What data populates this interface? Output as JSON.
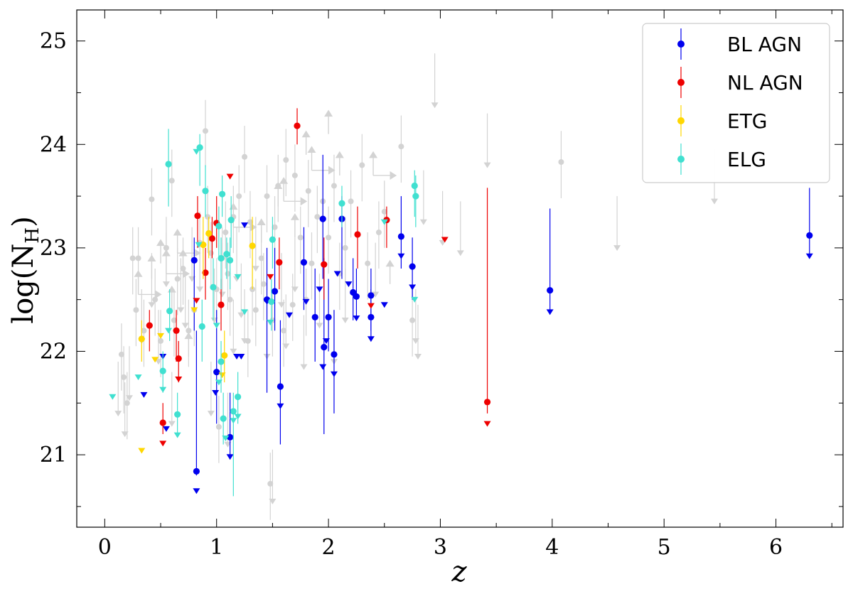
{
  "chart_data": {
    "type": "scatter",
    "xlabel": "z",
    "ylabel": "log(N",
    "ylabel_sub": "H",
    "ylabel_close": ")",
    "xlim": [
      -0.25,
      6.6
    ],
    "ylim": [
      20.3,
      25.3
    ],
    "x_ticks": [
      0,
      1,
      2,
      3,
      4,
      5,
      6
    ],
    "y_ticks": [
      21,
      22,
      23,
      24,
      25
    ],
    "x_tick_labels": [
      "0",
      "1",
      "2",
      "3",
      "4",
      "5",
      "6"
    ],
    "y_tick_labels": [
      "21",
      "22",
      "23",
      "24",
      "25"
    ],
    "grid": false,
    "legend_position": "top-right",
    "background": {
      "name": "",
      "color": "#d3d3d3",
      "points": [
        [
          0.15,
          21.97
        ],
        [
          0.17,
          21.75
        ],
        [
          0.2,
          21.5
        ],
        [
          0.25,
          22.9
        ],
        [
          0.28,
          22.4
        ],
        [
          0.3,
          22.9
        ],
        [
          0.42,
          23.47
        ],
        [
          0.45,
          22.5
        ],
        [
          0.5,
          22.1
        ],
        [
          0.55,
          23.0
        ],
        [
          0.6,
          23.65
        ],
        [
          0.62,
          22.3
        ],
        [
          0.7,
          22.8
        ],
        [
          0.75,
          22.2
        ],
        [
          0.8,
          22.4
        ],
        [
          0.85,
          23.05
        ],
        [
          0.9,
          24.13
        ],
        [
          0.92,
          23.3
        ],
        [
          0.95,
          22.95
        ],
        [
          1.0,
          22.6
        ],
        [
          1.02,
          21.27
        ],
        [
          1.05,
          22.9
        ],
        [
          1.08,
          23.15
        ],
        [
          1.1,
          22.75
        ],
        [
          1.15,
          23.3
        ],
        [
          1.2,
          23.5
        ],
        [
          1.25,
          23.88
        ],
        [
          1.3,
          23.25
        ],
        [
          1.32,
          22.6
        ],
        [
          1.35,
          22.4
        ],
        [
          1.4,
          22.9
        ],
        [
          1.45,
          23.5
        ],
        [
          1.48,
          20.72
        ],
        [
          1.5,
          22.3
        ],
        [
          1.52,
          23.2
        ],
        [
          1.55,
          23.6
        ],
        [
          1.6,
          22.2
        ],
        [
          1.62,
          23.85
        ],
        [
          1.7,
          23.7
        ],
        [
          1.75,
          23.1
        ],
        [
          1.8,
          22.5
        ],
        [
          1.82,
          23.55
        ],
        [
          1.85,
          22.85
        ],
        [
          1.9,
          23.3
        ],
        [
          1.95,
          23.45
        ],
        [
          2.0,
          23.1
        ],
        [
          2.05,
          23.6
        ],
        [
          2.15,
          23.0
        ],
        [
          2.2,
          23.45
        ],
        [
          2.3,
          23.8
        ],
        [
          2.35,
          22.85
        ],
        [
          2.45,
          23.15
        ],
        [
          2.5,
          23.35
        ],
        [
          2.65,
          23.98
        ],
        [
          2.75,
          22.3
        ],
        [
          4.08,
          23.83
        ],
        [
          0.35,
          22.2
        ],
        [
          0.65,
          22.7
        ],
        [
          1.12,
          22.5
        ],
        [
          1.28,
          22.1
        ],
        [
          1.42,
          22.65
        ],
        [
          1.68,
          22.45
        ],
        [
          2.1,
          22.75
        ]
      ]
    },
    "background_upper_limits": [
      [
        0.12,
        21.4
      ],
      [
        0.18,
        21.2
      ],
      [
        0.22,
        21.55
      ],
      [
        0.33,
        22.1
      ],
      [
        0.42,
        22.45
      ],
      [
        0.48,
        21.9
      ],
      [
        0.55,
        22.65
      ],
      [
        0.6,
        21.3
      ],
      [
        0.68,
        22.4
      ],
      [
        0.72,
        22.25
      ],
      [
        0.78,
        22.7
      ],
      [
        0.98,
        22.3
      ],
      [
        1.05,
        22.55
      ],
      [
        1.15,
        22.0
      ],
      [
        1.18,
        22.7
      ],
      [
        1.22,
        22.35
      ],
      [
        1.35,
        22.8
      ],
      [
        1.45,
        21.95
      ],
      [
        1.5,
        20.55
      ],
      [
        1.58,
        22.45
      ],
      [
        1.62,
        22.05
      ],
      [
        1.7,
        22.6
      ],
      [
        1.78,
        21.85
      ],
      [
        1.92,
        22.25
      ],
      [
        2.05,
        21.9
      ],
      [
        2.15,
        22.3
      ],
      [
        2.42,
        22.55
      ],
      [
        2.78,
        22.1
      ],
      [
        2.8,
        21.95
      ],
      [
        2.95,
        24.38
      ],
      [
        3.02,
        23.05
      ],
      [
        3.18,
        22.95
      ],
      [
        3.42,
        23.8
      ],
      [
        2.85,
        23.25
      ],
      [
        4.58,
        23.0
      ],
      [
        5.45,
        23.45
      ],
      [
        0.85,
        22.6
      ],
      [
        0.95,
        21.4
      ],
      [
        1.1,
        21.1
      ],
      [
        1.25,
        22.1
      ]
    ],
    "background_lower_limits": [
      [
        0.3,
        22.75
      ],
      [
        0.42,
        22.9
      ],
      [
        0.5,
        23.05
      ],
      [
        0.55,
        22.95
      ],
      [
        0.6,
        22.6
      ],
      [
        0.75,
        22.15
      ],
      [
        1.15,
        23.4
      ],
      [
        1.4,
        23.25
      ],
      [
        1.55,
        23.6
      ],
      [
        1.6,
        23.65
      ],
      [
        1.7,
        23.3
      ],
      [
        1.8,
        24.1
      ],
      [
        1.85,
        23.95
      ],
      [
        2.0,
        24.3
      ],
      [
        2.1,
        23.9
      ],
      [
        2.4,
        23.9
      ],
      [
        2.55,
        22.85
      ],
      [
        0.7,
        22.95
      ],
      [
        0.65,
        23.15
      ]
    ],
    "series": [
      {
        "name": "BL AGN",
        "color": "#0000ee",
        "points": [
          {
            "x": 0.8,
            "y": 22.88,
            "lo": 22.2,
            "hi": 23.1
          },
          {
            "x": 0.82,
            "y": 20.84,
            "lo": 20.8,
            "hi": 22.2
          },
          {
            "x": 1.0,
            "y": 21.8,
            "lo": 21.3,
            "hi": 22.4
          },
          {
            "x": 1.12,
            "y": 21.17,
            "lo": 21.0,
            "hi": 21.6
          },
          {
            "x": 1.45,
            "y": 22.5,
            "lo": 21.6,
            "hi": 23.0
          },
          {
            "x": 1.52,
            "y": 22.58,
            "lo": 22.2,
            "hi": 23.0
          },
          {
            "x": 1.57,
            "y": 21.66,
            "lo": 21.1,
            "hi": 22.3
          },
          {
            "x": 1.78,
            "y": 22.86,
            "lo": 22.4,
            "hi": 23.2
          },
          {
            "x": 1.88,
            "y": 22.33,
            "lo": 21.9,
            "hi": 22.8
          },
          {
            "x": 1.95,
            "y": 23.28,
            "lo": 22.7,
            "hi": 23.9
          },
          {
            "x": 1.96,
            "y": 22.04,
            "lo": 21.2,
            "hi": 22.9
          },
          {
            "x": 2.0,
            "y": 22.33,
            "lo": 22.0,
            "hi": 22.7
          },
          {
            "x": 2.05,
            "y": 21.97,
            "lo": 21.4,
            "hi": 22.4
          },
          {
            "x": 2.12,
            "y": 23.28,
            "lo": 22.7,
            "hi": 23.5
          },
          {
            "x": 2.22,
            "y": 22.57,
            "lo": 22.3,
            "hi": 22.9
          },
          {
            "x": 2.25,
            "y": 22.53,
            "lo": 22.3,
            "hi": 22.8
          },
          {
            "x": 2.38,
            "y": 22.54,
            "lo": 22.2,
            "hi": 22.8
          },
          {
            "x": 2.38,
            "y": 22.33,
            "lo": 22.1,
            "hi": 22.6
          },
          {
            "x": 2.65,
            "y": 23.11,
            "lo": 22.8,
            "hi": 23.5
          },
          {
            "x": 2.75,
            "y": 22.82,
            "lo": 22.5,
            "hi": 23.1
          },
          {
            "x": 3.98,
            "y": 22.59,
            "lo": 22.4,
            "hi": 23.38
          },
          {
            "x": 6.3,
            "y": 23.12,
            "lo": 22.9,
            "hi": 23.58
          }
        ],
        "upper_limits": [
          [
            0.52,
            21.95
          ],
          [
            0.35,
            21.58
          ],
          [
            0.55,
            21.25
          ],
          [
            0.82,
            20.65
          ],
          [
            0.99,
            21.6
          ],
          [
            1.12,
            20.98
          ],
          [
            1.18,
            21.95
          ],
          [
            1.22,
            21.95
          ],
          [
            1.25,
            23.22
          ],
          [
            1.45,
            22.48
          ],
          [
            1.57,
            21.47
          ],
          [
            1.65,
            22.35
          ],
          [
            1.8,
            22.48
          ],
          [
            1.92,
            22.6
          ],
          [
            1.95,
            21.85
          ],
          [
            1.98,
            22.1
          ],
          [
            2.05,
            21.78
          ],
          [
            2.08,
            22.75
          ],
          [
            2.18,
            22.65
          ],
          [
            2.25,
            22.32
          ],
          [
            2.38,
            22.12
          ],
          [
            2.5,
            22.45
          ],
          [
            2.65,
            22.92
          ],
          [
            2.75,
            22.62
          ],
          [
            3.98,
            22.38
          ],
          [
            6.3,
            22.92
          ]
        ]
      },
      {
        "name": "NL AGN",
        "color": "#ee0000",
        "points": [
          {
            "x": 0.4,
            "y": 22.25,
            "lo": 22.0,
            "hi": 22.4
          },
          {
            "x": 0.52,
            "y": 21.31,
            "lo": 21.2,
            "hi": 21.5
          },
          {
            "x": 0.64,
            "y": 22.2,
            "lo": 21.9,
            "hi": 22.4
          },
          {
            "x": 0.66,
            "y": 21.93,
            "lo": 21.7,
            "hi": 22.1
          },
          {
            "x": 0.83,
            "y": 23.31,
            "lo": 23.0,
            "hi": 23.5
          },
          {
            "x": 0.9,
            "y": 22.76,
            "lo": 22.5,
            "hi": 23.0
          },
          {
            "x": 0.96,
            "y": 23.09,
            "lo": 22.9,
            "hi": 23.3
          },
          {
            "x": 1.0,
            "y": 23.24,
            "lo": 23.0,
            "hi": 23.5
          },
          {
            "x": 1.04,
            "y": 22.45,
            "lo": 22.2,
            "hi": 22.7
          },
          {
            "x": 1.56,
            "y": 22.86,
            "lo": 22.6,
            "hi": 23.1
          },
          {
            "x": 1.72,
            "y": 24.18,
            "lo": 24.0,
            "hi": 24.35
          },
          {
            "x": 1.96,
            "y": 22.84,
            "lo": 22.5,
            "hi": 23.1
          },
          {
            "x": 2.26,
            "y": 23.13,
            "lo": 22.8,
            "hi": 23.4
          },
          {
            "x": 2.52,
            "y": 23.27,
            "lo": 23.0,
            "hi": 23.4
          },
          {
            "x": 3.42,
            "y": 21.51,
            "lo": 21.4,
            "hi": 23.58
          }
        ],
        "upper_limits": [
          [
            0.52,
            21.11
          ],
          [
            0.66,
            21.73
          ],
          [
            0.82,
            22.49
          ],
          [
            1.12,
            23.69
          ],
          [
            1.48,
            22.72
          ],
          [
            2.38,
            22.44
          ],
          [
            3.04,
            23.08
          ],
          [
            3.42,
            21.3
          ]
        ]
      },
      {
        "name": "ETG",
        "color": "#ffd700",
        "points": [
          {
            "x": 0.33,
            "y": 22.12,
            "lo": 21.9,
            "hi": 22.3
          },
          {
            "x": 0.88,
            "y": 23.03,
            "lo": 22.7,
            "hi": 23.3
          },
          {
            "x": 0.93,
            "y": 23.14,
            "lo": 22.9,
            "hi": 23.3
          },
          {
            "x": 1.07,
            "y": 21.96,
            "lo": 21.7,
            "hi": 22.2
          },
          {
            "x": 1.32,
            "y": 23.02,
            "lo": 22.6,
            "hi": 23.3
          }
        ],
        "upper_limits": [
          [
            0.33,
            21.04
          ],
          [
            0.45,
            21.92
          ],
          [
            0.5,
            22.15
          ],
          [
            1.05,
            21.77
          ],
          [
            0.8,
            22.4
          ]
        ]
      },
      {
        "name": "ELG",
        "color": "#40e0d0",
        "points": [
          {
            "x": 0.52,
            "y": 21.81,
            "lo": 21.6,
            "hi": 22.0
          },
          {
            "x": 0.57,
            "y": 23.81,
            "lo": 23.4,
            "hi": 24.15
          },
          {
            "x": 0.58,
            "y": 22.39,
            "lo": 22.1,
            "hi": 22.6
          },
          {
            "x": 0.65,
            "y": 21.39,
            "lo": 21.2,
            "hi": 21.6
          },
          {
            "x": 0.85,
            "y": 23.97,
            "lo": 23.6,
            "hi": 24.1
          },
          {
            "x": 0.87,
            "y": 22.24,
            "lo": 21.9,
            "hi": 22.5
          },
          {
            "x": 0.9,
            "y": 23.55,
            "lo": 23.3,
            "hi": 23.8
          },
          {
            "x": 0.97,
            "y": 22.62,
            "lo": 22.3,
            "hi": 22.9
          },
          {
            "x": 1.02,
            "y": 23.21,
            "lo": 22.9,
            "hi": 23.4
          },
          {
            "x": 1.04,
            "y": 21.9,
            "lo": 21.6,
            "hi": 22.1
          },
          {
            "x": 1.04,
            "y": 22.9,
            "lo": 22.6,
            "hi": 23.1
          },
          {
            "x": 1.05,
            "y": 23.52,
            "lo": 23.3,
            "hi": 23.7
          },
          {
            "x": 1.06,
            "y": 21.35,
            "lo": 21.1,
            "hi": 21.6
          },
          {
            "x": 1.09,
            "y": 22.94,
            "lo": 22.7,
            "hi": 23.1
          },
          {
            "x": 1.12,
            "y": 22.88,
            "lo": 22.6,
            "hi": 23.1
          },
          {
            "x": 1.13,
            "y": 23.27,
            "lo": 23.0,
            "hi": 23.5
          },
          {
            "x": 1.15,
            "y": 21.42,
            "lo": 20.6,
            "hi": 21.6
          },
          {
            "x": 1.19,
            "y": 21.56,
            "lo": 21.3,
            "hi": 21.8
          },
          {
            "x": 1.49,
            "y": 22.48,
            "lo": 22.2,
            "hi": 22.7
          },
          {
            "x": 1.5,
            "y": 23.08,
            "lo": 22.8,
            "hi": 23.3
          },
          {
            "x": 2.12,
            "y": 23.43,
            "lo": 23.2,
            "hi": 23.6
          },
          {
            "x": 2.77,
            "y": 23.6,
            "lo": 23.3,
            "hi": 23.75
          },
          {
            "x": 2.78,
            "y": 23.5,
            "lo": 23.2,
            "hi": 23.7
          }
        ],
        "upper_limits": [
          [
            0.07,
            21.56
          ],
          [
            0.3,
            21.75
          ],
          [
            0.52,
            21.63
          ],
          [
            0.57,
            22.2
          ],
          [
            0.65,
            21.19
          ],
          [
            0.82,
            23.93
          ],
          [
            0.84,
            23.03
          ],
          [
            1.02,
            21.7
          ],
          [
            1.08,
            21.16
          ],
          [
            1.15,
            21.33
          ],
          [
            1.19,
            21.37
          ],
          [
            1.19,
            22.72
          ],
          [
            1.25,
            22.38
          ],
          [
            1.48,
            22.28
          ],
          [
            2.5,
            23.25
          ],
          [
            2.77,
            22.5
          ],
          [
            1.0,
            22.25
          ]
        ]
      }
    ]
  }
}
